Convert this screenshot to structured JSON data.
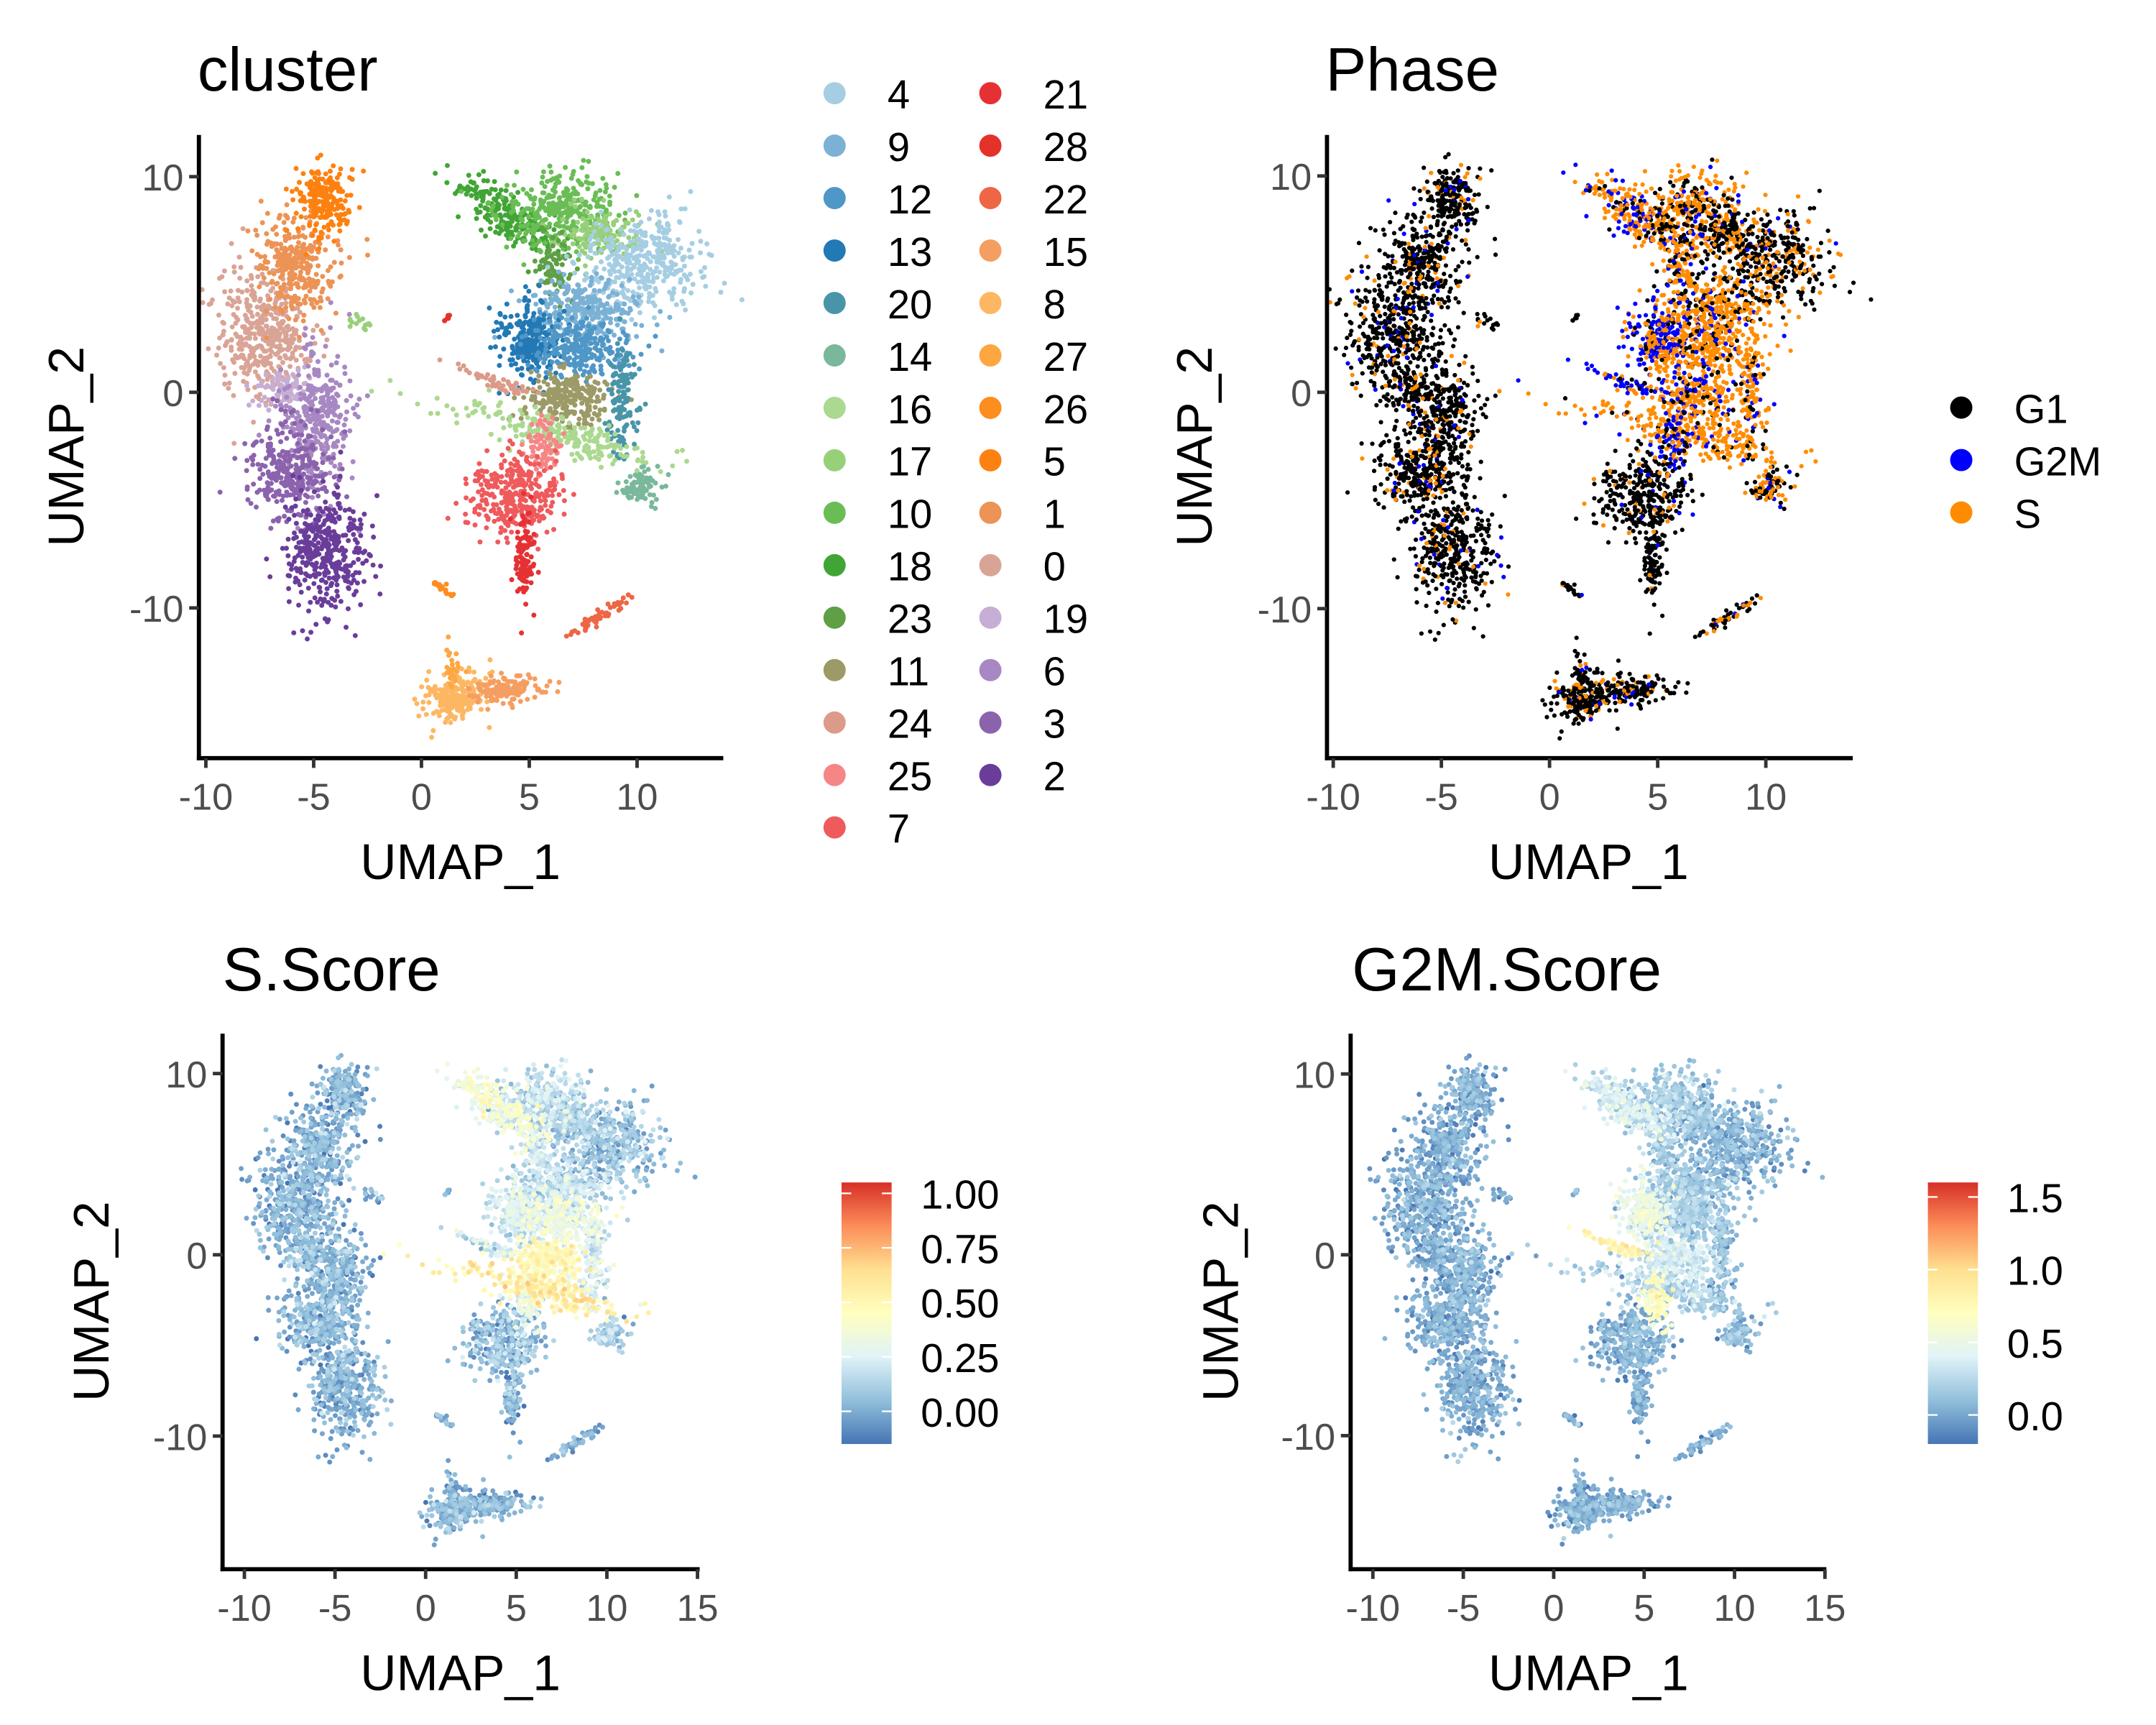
{
  "chart_data": [
    {
      "type": "scatter",
      "title": "cluster",
      "xlabel": "UMAP_1",
      "ylabel": "UMAP_2",
      "xticks": [
        -10,
        -5,
        0,
        5,
        10
      ],
      "yticks": [
        -10,
        0,
        10
      ],
      "xlim": [
        -10.3,
        14
      ],
      "ylim": [
        -17,
        12
      ],
      "grid": false,
      "legend": {
        "placement": "right",
        "entries": [
          "4",
          "9",
          "12",
          "13",
          "20",
          "14",
          "16",
          "17",
          "10",
          "18",
          "23",
          "11",
          "24",
          "25",
          "7",
          "21",
          "28",
          "22",
          "15",
          "8",
          "27",
          "26",
          "5",
          "1",
          "0",
          "19",
          "6",
          "3",
          "2"
        ],
        "colors": [
          "#a6cee3",
          "#7bb1d5",
          "#4f97c7",
          "#2279b5",
          "#4895a8",
          "#7ab89b",
          "#abd98f",
          "#98d07a",
          "#6abd55",
          "#41a535",
          "#5f9f45",
          "#9c9a66",
          "#dc9b8a",
          "#f68686",
          "#ef5a5c",
          "#e63134",
          "#e4322a",
          "#ee6646",
          "#f59e62",
          "#fdb763",
          "#fea640",
          "#fd8d1f",
          "#fd8110",
          "#ec9355",
          "#d9a496",
          "#c6aed5",
          "#a888c2",
          "#8b63ad",
          "#6a3d9a"
        ]
      }
    },
    {
      "type": "scatter",
      "title": "Phase",
      "xlabel": "UMAP_1",
      "ylabel": "UMAP_2",
      "xticks": [
        -10,
        -5,
        0,
        5,
        10
      ],
      "yticks": [
        -10,
        0,
        10
      ],
      "xlim": [
        -10.3,
        14
      ],
      "ylim": [
        -17,
        12
      ],
      "grid": false,
      "legend": {
        "placement": "right",
        "entries": [
          "G1",
          "G2M",
          "S"
        ],
        "colors": [
          "#000000",
          "#0000ff",
          "#ff8c00"
        ]
      }
    },
    {
      "type": "scatter",
      "title": "S.Score",
      "xlabel": "UMAP_1",
      "ylabel": "UMAP_2",
      "xticks": [
        -10,
        -5,
        0,
        5,
        10,
        15
      ],
      "yticks": [
        -10,
        0,
        10
      ],
      "xlim": [
        -11.2,
        15.2
      ],
      "ylim": [
        -17,
        12.2
      ],
      "grid": false,
      "colorbar": {
        "placement": "right",
        "ticks": [
          "1.00",
          "0.75",
          "0.50",
          "0.25",
          "0.00"
        ],
        "range": [
          -0.15,
          1.05
        ],
        "palette": [
          "#4575b4",
          "#91bfdb",
          "#e0f3f8",
          "#ffffbf",
          "#fee090",
          "#fc8d59",
          "#d73027"
        ]
      }
    },
    {
      "type": "scatter",
      "title": "G2M.Score",
      "xlabel": "UMAP_1",
      "ylabel": "UMAP_2",
      "xticks": [
        -10,
        -5,
        0,
        5,
        10,
        15
      ],
      "yticks": [
        -10,
        0,
        10
      ],
      "xlim": [
        -11.2,
        15.2
      ],
      "ylim": [
        -17,
        12.2
      ],
      "grid": false,
      "colorbar": {
        "placement": "right",
        "ticks": [
          "1.5",
          "1.0",
          "0.5",
          "0.0"
        ],
        "range": [
          -0.2,
          1.6
        ],
        "palette": [
          "#4575b4",
          "#91bfdb",
          "#e0f3f8",
          "#ffffbf",
          "#fee090",
          "#fc8d59",
          "#d73027"
        ]
      }
    }
  ]
}
